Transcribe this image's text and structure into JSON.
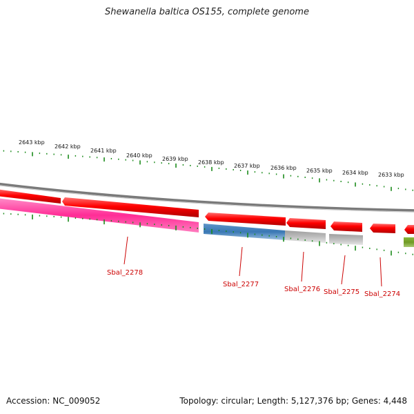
{
  "title": "Shewanella baltica OS155, complete genome",
  "kbp_labels": [
    "2643 kbp",
    "2642 kbp",
    "2641 kbp",
    "2640 kbp",
    "2639 kbp",
    "2638 kbp",
    "2637 kbp",
    "2636 kbp",
    "2635 kbp",
    "2634 kbp",
    "2633 kbp"
  ],
  "gene_labels": [
    "Sbal_2278",
    "Sbal_2277",
    "Sbal_2276",
    "Sbal_2275",
    "Sbal_2274"
  ],
  "footer": {
    "accession": "Accession: NC_009052",
    "summary": "Topology: circular; Length: 5,127,376 bp; Genes: 4,448"
  },
  "colors": {
    "forward_gene": "#ff0000",
    "cds_pink": "#ff2d96",
    "cds_blue": "#3a78b4",
    "cds_gray": "#b8b8b8",
    "cds_olive": "#6f9a24",
    "backbone": "#888888",
    "ticks": "#1a8a1a",
    "gene_label": "#cc0000"
  }
}
